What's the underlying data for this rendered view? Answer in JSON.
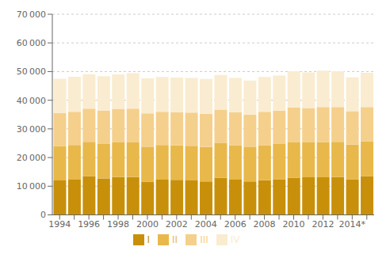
{
  "chart_data": {
    "type": "bar",
    "stacked": true,
    "grid": true,
    "legend": "bottom",
    "categories": [
      "1994",
      null,
      "1996",
      null,
      "1998",
      null,
      "2000",
      null,
      "2002",
      null,
      "2004",
      null,
      "2006",
      null,
      "2008",
      null,
      "2010",
      null,
      "2012",
      null,
      "2014*",
      null
    ],
    "series": [
      {
        "name": "I",
        "color": "#c8900a",
        "values": [
          12000,
          12300,
          13500,
          12700,
          13200,
          13200,
          11600,
          12300,
          12200,
          12000,
          11700,
          12900,
          12300,
          11700,
          12100,
          12400,
          13000,
          13100,
          13100,
          13200,
          12400,
          13500
        ]
      },
      {
        "name": "II",
        "color": "#e8b84b",
        "values": [
          12000,
          12100,
          12000,
          12000,
          12100,
          12100,
          12000,
          12100,
          12000,
          12100,
          12000,
          12100,
          12000,
          11900,
          12200,
          12300,
          12300,
          12200,
          12300,
          12300,
          12100,
          12200
        ]
      },
      {
        "name": "III",
        "color": "#f5d08c",
        "values": [
          11500,
          11600,
          11600,
          11600,
          11700,
          11800,
          11800,
          11600,
          11600,
          11600,
          11600,
          11700,
          11500,
          11400,
          11700,
          11700,
          12200,
          12000,
          12200,
          12100,
          11700,
          11900
        ]
      },
      {
        "name": "IV",
        "color": "#faecd0",
        "values": [
          12000,
          12200,
          12000,
          12100,
          12000,
          12300,
          12200,
          12100,
          12100,
          12100,
          12100,
          12100,
          12000,
          11900,
          12100,
          12200,
          12600,
          12400,
          12700,
          12500,
          11800,
          12000
        ]
      }
    ],
    "ylim": [
      0,
      70000
    ],
    "yticks": [
      0,
      {
        "value": 10000,
        "label": "10 000"
      },
      {
        "value": 20000,
        "label": "20 000"
      },
      {
        "value": 30000,
        "label": "30 000"
      },
      {
        "value": 40000,
        "label": "40 000"
      },
      {
        "value": 50000,
        "label": "50 000"
      },
      {
        "value": 60000,
        "label": "60 000"
      },
      {
        "value": 70000,
        "label": "70 000"
      }
    ]
  }
}
